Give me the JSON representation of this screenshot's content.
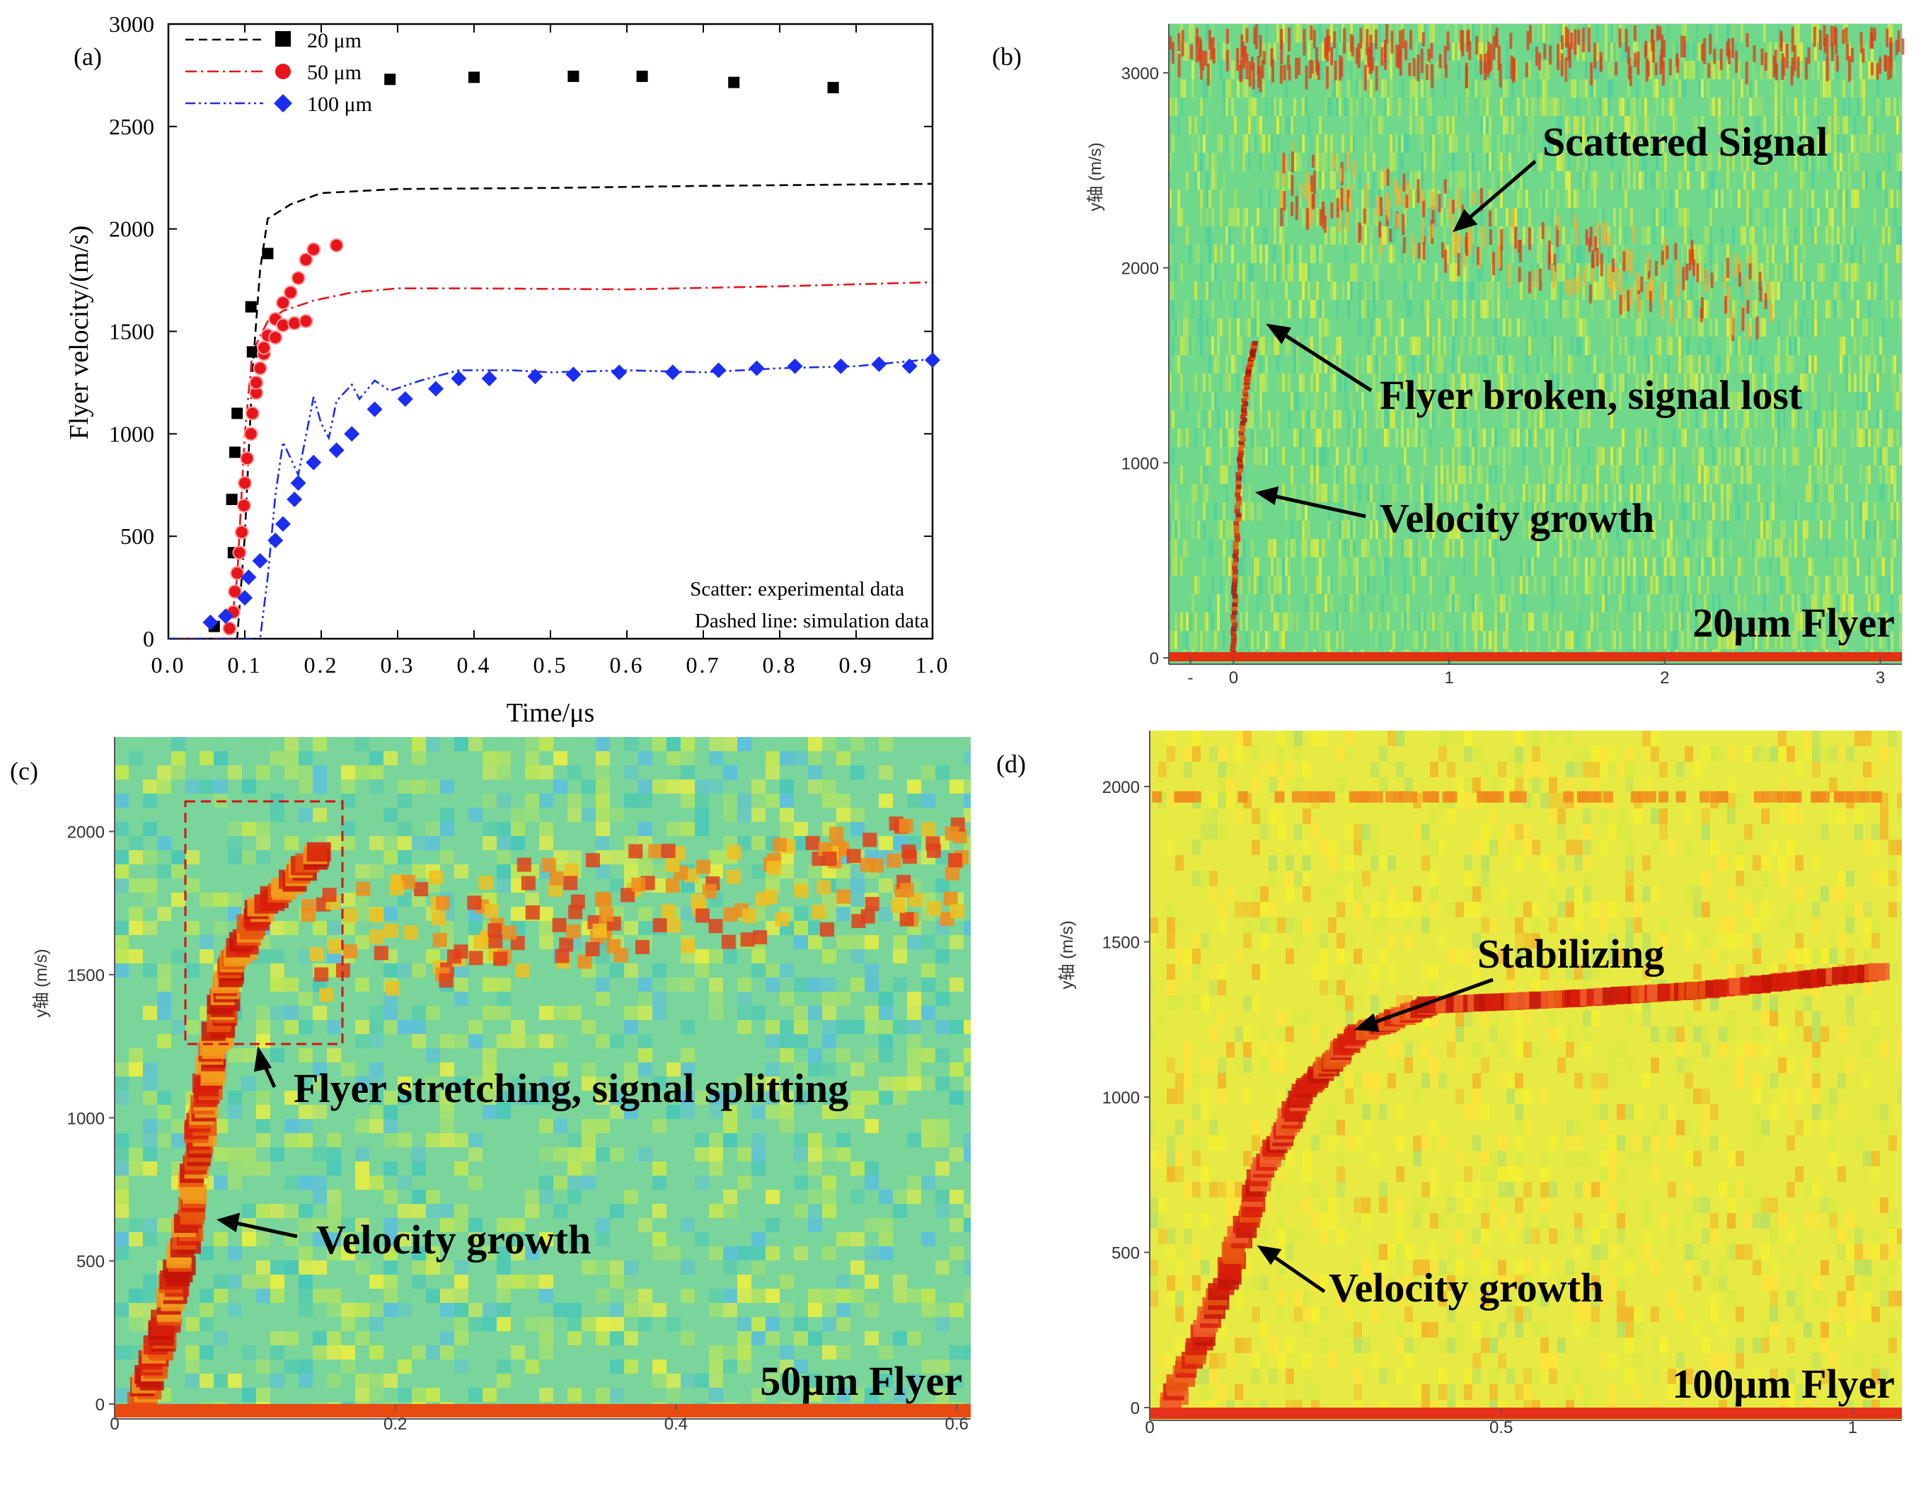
{
  "figure": {
    "panel_a": {
      "label": "(a)",
      "ylabel": "Flyer velocity/(m/s)",
      "xlabel": "Time/μs",
      "note_line1": "Scatter: experimental data",
      "note_line2": "Dashed line: simulation data",
      "legend": [
        "20 μm",
        "50 μm",
        "100 μm"
      ]
    },
    "panel_b": {
      "label": "(b)",
      "ylabel": "y轴 (m/s)",
      "annot_scattered": "Scattered Signal",
      "annot_broken": "Flyer broken, signal lost",
      "annot_growth": "Velocity growth",
      "tag": "20μm Flyer",
      "yticks": [
        "0",
        "1000",
        "2000",
        "3000"
      ],
      "xticks": [
        "-",
        "0",
        "1",
        "2",
        "3"
      ]
    },
    "panel_c": {
      "label": "(c)",
      "ylabel": "y轴 (m/s)",
      "annot_stretch": "Flyer stretching, signal splitting",
      "annot_growth": "Velocity growth",
      "tag": "50μm Flyer",
      "yticks": [
        "0",
        "500",
        "1000",
        "1500",
        "2000"
      ],
      "xticks": [
        "0",
        "0.2",
        "0.4",
        "0.6"
      ]
    },
    "panel_d": {
      "label": "(d)",
      "ylabel": "y轴 (m/s)",
      "annot_stab": "Stabilizing",
      "annot_growth": "Velocity growth",
      "tag": "100μm Flyer",
      "yticks": [
        "0",
        "500",
        "1000",
        "1500",
        "2000"
      ],
      "xticks": [
        "0",
        "0.5",
        "1"
      ]
    }
  },
  "colors": {
    "s20": "#000000",
    "s50": "#e8141b",
    "s100": "#1b2df0",
    "bg_green": "#6fd88a",
    "bg_yellow": "#e9f03c",
    "signal": "#e02a10"
  },
  "chart_data": [
    {
      "type": "scatter",
      "title": "(a)",
      "xlabel": "Time/μs",
      "ylabel": "Flyer velocity/(m/s)",
      "xlim": [
        0.0,
        1.0
      ],
      "ylim": [
        0,
        3000
      ],
      "xticks": [
        "0.0",
        "0.1",
        "0.2",
        "0.3",
        "0.4",
        "0.5",
        "0.6",
        "0.7",
        "0.8",
        "0.9",
        "1.0"
      ],
      "yticks": [
        "0",
        "500",
        "1000",
        "1500",
        "2000",
        "2500",
        "3000"
      ],
      "legend_position": "top-left",
      "series": [
        {
          "name": "20 μm",
          "kind": "experimental",
          "marker": "square",
          "points": [
            [
              0.06,
              60
            ],
            [
              0.085,
              420
            ],
            [
              0.083,
              680
            ],
            [
              0.087,
              910
            ],
            [
              0.09,
              1100
            ],
            [
              0.11,
              1400
            ],
            [
              0.108,
              1620
            ],
            [
              0.13,
              1880
            ],
            [
              0.29,
              2730
            ],
            [
              0.4,
              2740
            ],
            [
              0.53,
              2745
            ],
            [
              0.62,
              2745
            ],
            [
              0.74,
              2715
            ],
            [
              0.87,
              2690
            ]
          ]
        },
        {
          "name": "50 μm",
          "kind": "experimental",
          "marker": "circle",
          "points": [
            [
              0.08,
              50
            ],
            [
              0.085,
              130
            ],
            [
              0.087,
              230
            ],
            [
              0.09,
              320
            ],
            [
              0.093,
              420
            ],
            [
              0.096,
              520
            ],
            [
              0.099,
              650
            ],
            [
              0.1,
              760
            ],
            [
              0.103,
              880
            ],
            [
              0.108,
              1000
            ],
            [
              0.11,
              1100
            ],
            [
              0.115,
              1200
            ],
            [
              0.12,
              1320
            ],
            [
              0.125,
              1390
            ],
            [
              0.13,
              1480
            ],
            [
              0.14,
              1560
            ],
            [
              0.15,
              1640
            ],
            [
              0.16,
              1690
            ],
            [
              0.17,
              1760
            ],
            [
              0.18,
              1850
            ],
            [
              0.19,
              1900
            ],
            [
              0.22,
              1920
            ],
            [
              0.115,
              1250
            ],
            [
              0.125,
              1420
            ],
            [
              0.14,
              1470
            ],
            [
              0.15,
              1530
            ],
            [
              0.165,
              1540
            ],
            [
              0.18,
              1550
            ]
          ]
        },
        {
          "name": "100 μm",
          "kind": "experimental",
          "marker": "diamond",
          "points": [
            [
              0.055,
              80
            ],
            [
              0.075,
              110
            ],
            [
              0.1,
              200
            ],
            [
              0.105,
              300
            ],
            [
              0.12,
              380
            ],
            [
              0.14,
              480
            ],
            [
              0.15,
              560
            ],
            [
              0.165,
              680
            ],
            [
              0.17,
              760
            ],
            [
              0.19,
              860
            ],
            [
              0.22,
              920
            ],
            [
              0.24,
              1000
            ],
            [
              0.27,
              1120
            ],
            [
              0.31,
              1170
            ],
            [
              0.35,
              1220
            ],
            [
              0.38,
              1270
            ],
            [
              0.42,
              1270
            ],
            [
              0.48,
              1280
            ],
            [
              0.53,
              1290
            ],
            [
              0.59,
              1300
            ],
            [
              0.66,
              1300
            ],
            [
              0.72,
              1310
            ],
            [
              0.77,
              1320
            ],
            [
              0.82,
              1330
            ],
            [
              0.88,
              1330
            ],
            [
              0.93,
              1340
            ],
            [
              0.97,
              1330
            ],
            [
              1.0,
              1360
            ]
          ]
        },
        {
          "name": "20 μm",
          "kind": "simulation",
          "dash": "dash",
          "points": [
            [
              0.0,
              0
            ],
            [
              0.09,
              0
            ],
            [
              0.1,
              500
            ],
            [
              0.11,
              1300
            ],
            [
              0.12,
              1800
            ],
            [
              0.13,
              2050
            ],
            [
              0.16,
              2120
            ],
            [
              0.2,
              2175
            ],
            [
              0.3,
              2195
            ],
            [
              0.5,
              2200
            ],
            [
              0.7,
              2210
            ],
            [
              1.0,
              2220
            ]
          ]
        },
        {
          "name": "50 μm",
          "kind": "simulation",
          "dash": "dashdot",
          "points": [
            [
              0.0,
              0
            ],
            [
              0.08,
              0
            ],
            [
              0.09,
              300
            ],
            [
              0.1,
              1000
            ],
            [
              0.11,
              1400
            ],
            [
              0.13,
              1550
            ],
            [
              0.15,
              1600
            ],
            [
              0.19,
              1650
            ],
            [
              0.24,
              1690
            ],
            [
              0.3,
              1710
            ],
            [
              0.4,
              1710
            ],
            [
              0.6,
              1705
            ],
            [
              0.8,
              1720
            ],
            [
              1.0,
              1740
            ]
          ]
        },
        {
          "name": "100 μm",
          "kind": "simulation",
          "dash": "dashdotdot",
          "points": [
            [
              0.0,
              0
            ],
            [
              0.12,
              0
            ],
            [
              0.13,
              300
            ],
            [
              0.14,
              700
            ],
            [
              0.15,
              960
            ],
            [
              0.16,
              880
            ],
            [
              0.17,
              800
            ],
            [
              0.19,
              1180
            ],
            [
              0.2,
              1050
            ],
            [
              0.21,
              980
            ],
            [
              0.22,
              1160
            ],
            [
              0.24,
              1240
            ],
            [
              0.25,
              1170
            ],
            [
              0.27,
              1260
            ],
            [
              0.29,
              1210
            ],
            [
              0.33,
              1260
            ],
            [
              0.38,
              1310
            ],
            [
              0.45,
              1310
            ],
            [
              0.5,
              1300
            ],
            [
              0.6,
              1310
            ],
            [
              0.7,
              1300
            ],
            [
              0.8,
              1320
            ],
            [
              0.9,
              1330
            ],
            [
              1.0,
              1365
            ]
          ]
        }
      ]
    },
    {
      "type": "heatmap",
      "title": "(b) 20μm Flyer",
      "ylabel": "y轴 (m/s)",
      "xlim": [
        -0.3,
        3.1
      ],
      "ylim": [
        0,
        3250
      ],
      "trace": [
        [
          0.0,
          0
        ],
        [
          0.01,
          500
        ],
        [
          0.03,
          1000
        ],
        [
          0.06,
          1400
        ],
        [
          0.1,
          1620
        ]
      ]
    },
    {
      "type": "heatmap",
      "title": "(c) 50μm Flyer",
      "ylabel": "y轴 (m/s)",
      "xlim": [
        0.0,
        0.61
      ],
      "ylim": [
        0,
        2330
      ],
      "trace": [
        [
          0.02,
          0
        ],
        [
          0.035,
          250
        ],
        [
          0.05,
          550
        ],
        [
          0.06,
          900
        ],
        [
          0.07,
          1200
        ],
        [
          0.08,
          1450
        ],
        [
          0.1,
          1700
        ],
        [
          0.15,
          1930
        ]
      ]
    },
    {
      "type": "heatmap",
      "title": "(d) 100μm Flyer",
      "ylabel": "y轴 (m/s)",
      "xlim": [
        0.0,
        1.07
      ],
      "ylim": [
        0,
        2180
      ],
      "trace": [
        [
          0.03,
          0
        ],
        [
          0.1,
          350
        ],
        [
          0.16,
          750
        ],
        [
          0.22,
          1020
        ],
        [
          0.3,
          1200
        ],
        [
          0.4,
          1290
        ],
        [
          0.6,
          1310
        ],
        [
          0.8,
          1340
        ],
        [
          1.05,
          1400
        ]
      ]
    }
  ]
}
